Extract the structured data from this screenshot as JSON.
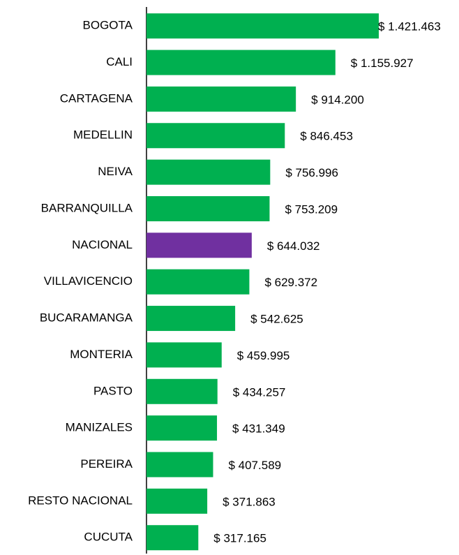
{
  "chart_data": {
    "type": "bar",
    "orientation": "horizontal",
    "categories": [
      "BOGOTA",
      "CALI",
      "CARTAGENA",
      "MEDELLIN",
      "NEIVA",
      "BARRANQUILLA",
      "NACIONAL",
      "VILLAVICENCIO",
      "BUCARAMANGA",
      "MONTERIA",
      "PASTO",
      "MANIZALES",
      "PEREIRA",
      "RESTO NACIONAL",
      "CUCUTA"
    ],
    "values": [
      1421463,
      1155927,
      914200,
      846453,
      756996,
      753209,
      644032,
      629372,
      542625,
      459995,
      434257,
      431349,
      407589,
      371863,
      317165
    ],
    "value_labels": [
      "$ 1.421.463",
      "$ 1.155.927",
      "$ 914.200",
      "$ 846.453",
      "$ 756.996",
      "$ 753.209",
      "$ 644.032",
      "$ 629.372",
      "$ 542.625",
      "$ 459.995",
      "$ 434.257",
      "$ 431.349",
      "$ 407.589",
      "$ 371.863",
      "$ 317.165"
    ],
    "colors": [
      "#00b050",
      "#00b050",
      "#00b050",
      "#00b050",
      "#00b050",
      "#00b050",
      "#7030a0",
      "#00b050",
      "#00b050",
      "#00b050",
      "#00b050",
      "#00b050",
      "#00b050",
      "#00b050",
      "#00b050"
    ]
  }
}
